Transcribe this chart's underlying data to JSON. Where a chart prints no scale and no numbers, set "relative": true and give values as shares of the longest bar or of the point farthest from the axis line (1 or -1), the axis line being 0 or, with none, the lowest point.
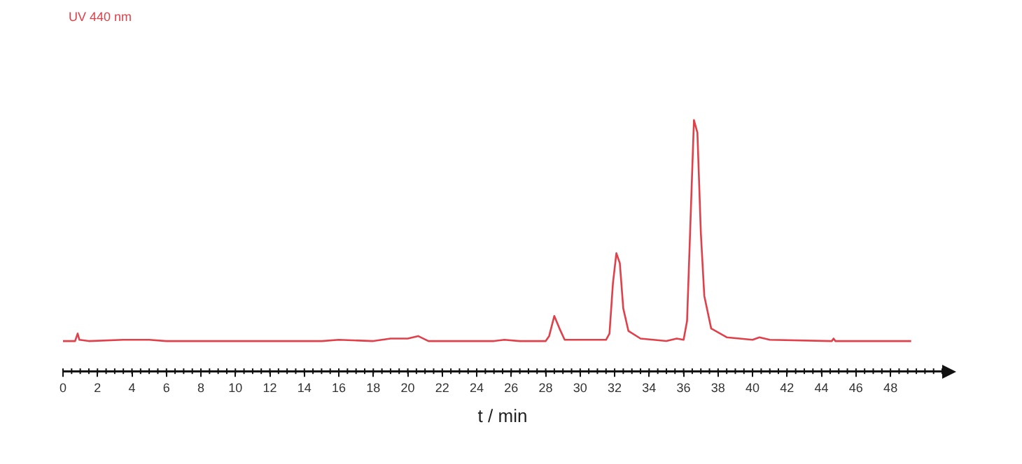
{
  "chart_data": {
    "type": "line",
    "xlabel": "t / min",
    "relative": true,
    "annotations": [
      "UV 440 nm"
    ],
    "grid": false,
    "legend": false,
    "marker": "none",
    "tick_labels": "x",
    "xlim": [
      0,
      51
    ],
    "xticks": [
      0,
      2,
      4,
      6,
      8,
      10,
      12,
      14,
      16,
      18,
      20,
      22,
      24,
      26,
      28,
      30,
      32,
      34,
      36,
      38,
      40,
      42,
      44,
      46,
      48
    ],
    "series": [
      {
        "color": "#e0404a",
        "x": [
          0,
          0.7,
          0.85,
          0.95,
          1.5,
          3.5,
          5,
          6,
          15,
          16,
          18,
          19,
          20,
          20.6,
          21.2,
          25,
          25.6,
          26.5,
          28,
          28.2,
          28.5,
          28.8,
          29.1,
          29.8,
          31.5,
          31.7,
          31.9,
          32.1,
          32.3,
          32.5,
          32.8,
          33.5,
          35,
          35.6,
          36,
          36.2,
          36.4,
          36.6,
          36.8,
          37,
          37.2,
          37.6,
          38.5,
          40,
          40.4,
          41,
          44.6,
          44.7,
          44.8,
          49.2
        ],
        "values": [
          0.12,
          0.12,
          0.15,
          0.125,
          0.12,
          0.125,
          0.125,
          0.12,
          0.12,
          0.125,
          0.12,
          0.13,
          0.13,
          0.14,
          0.12,
          0.12,
          0.125,
          0.12,
          0.12,
          0.14,
          0.22,
          0.17,
          0.125,
          0.125,
          0.125,
          0.15,
          0.35,
          0.47,
          0.43,
          0.25,
          0.16,
          0.13,
          0.12,
          0.13,
          0.125,
          0.2,
          0.6,
          1,
          0.95,
          0.55,
          0.3,
          0.17,
          0.135,
          0.125,
          0.135,
          0.125,
          0.12,
          0.13,
          0.12,
          0.12
        ]
      }
    ]
  }
}
